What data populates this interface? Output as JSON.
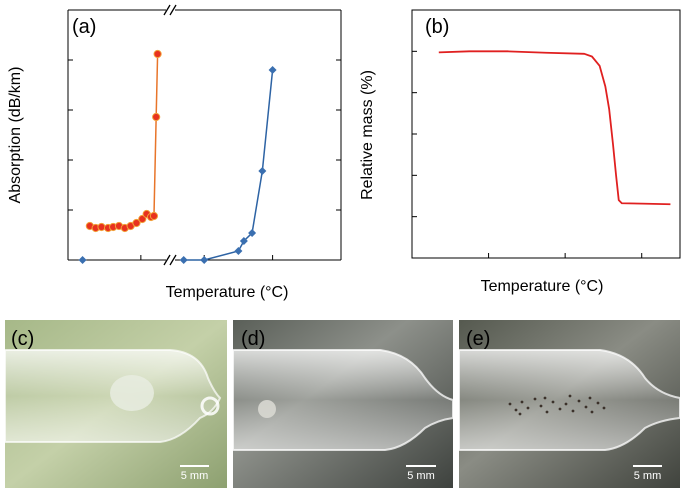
{
  "chart_data": [
    {
      "panel_label": "(a)",
      "type": "line",
      "xlabel": "Temperature (°C)",
      "ylabel": "Absorption (dB/km)",
      "axis_break": true,
      "ylim": [
        0,
        2500
      ],
      "yticks": [
        "0",
        "500",
        "1000",
        "1500",
        "2000",
        "2500"
      ],
      "left_segment": {
        "xlim": [
          0,
          140
        ],
        "xticks": [
          "0",
          "100"
        ]
      },
      "right_segment": {
        "xlim": [
          950,
          1200
        ],
        "xticks": [
          "1000",
          "1100",
          "1200"
        ]
      },
      "grid": false,
      "series": [
        {
          "color": "#E8752A",
          "marker": "circle",
          "marker_color": "#E8321E",
          "points": [
            [
              30,
              340
            ],
            [
              38,
              320
            ],
            [
              46,
              330
            ],
            [
              55,
              320
            ],
            [
              62,
              330
            ],
            [
              70,
              340
            ],
            [
              78,
              320
            ],
            [
              86,
              340
            ],
            [
              94,
              370
            ],
            [
              102,
              410
            ],
            [
              108,
              460
            ],
            [
              114,
              430
            ],
            [
              118,
              440
            ],
            [
              121,
              1430
            ],
            [
              123,
              2060
            ]
          ]
        },
        {
          "color": "#2D63A4",
          "marker": "diamond",
          "marker_color": "#3A6FB0",
          "left_points": [
            [
              20,
              0
            ]
          ],
          "points": [
            [
              970,
              0
            ],
            [
              1000,
              0
            ],
            [
              1050,
              90
            ],
            [
              1058,
              190
            ],
            [
              1070,
              270
            ],
            [
              1085,
              890
            ],
            [
              1100,
              1900
            ]
          ]
        }
      ]
    },
    {
      "panel_label": "(b)",
      "type": "line",
      "xlabel": "Temperature (°C)",
      "ylabel": "Relative mass (%)",
      "xlim": [
        0,
        700
      ],
      "ylim": [
        0,
        120
      ],
      "xticks": [
        "0",
        "200",
        "400",
        "600"
      ],
      "yticks": [
        "0",
        "20",
        "40",
        "60",
        "80",
        "100",
        "120"
      ],
      "grid": false,
      "series": [
        {
          "color": "#E02020",
          "points": [
            [
              70,
              99.5
            ],
            [
              150,
              100.0
            ],
            [
              250,
              100.0
            ],
            [
              350,
              99.3
            ],
            [
              450,
              98.8
            ],
            [
              470,
              97.5
            ],
            [
              490,
              93.0
            ],
            [
              505,
              83.0
            ],
            [
              515,
              72.0
            ],
            [
              525,
              55.0
            ],
            [
              533,
              40.0
            ],
            [
              540,
              28.0
            ],
            [
              548,
              26.5
            ],
            [
              600,
              26.3
            ],
            [
              675,
              26.0
            ]
          ]
        }
      ]
    }
  ],
  "photos": [
    {
      "label": "(c)",
      "scale_bar": "5 mm"
    },
    {
      "label": "(d)",
      "scale_bar": "5 mm"
    },
    {
      "label": "(e)",
      "scale_bar": "5 mm"
    }
  ]
}
